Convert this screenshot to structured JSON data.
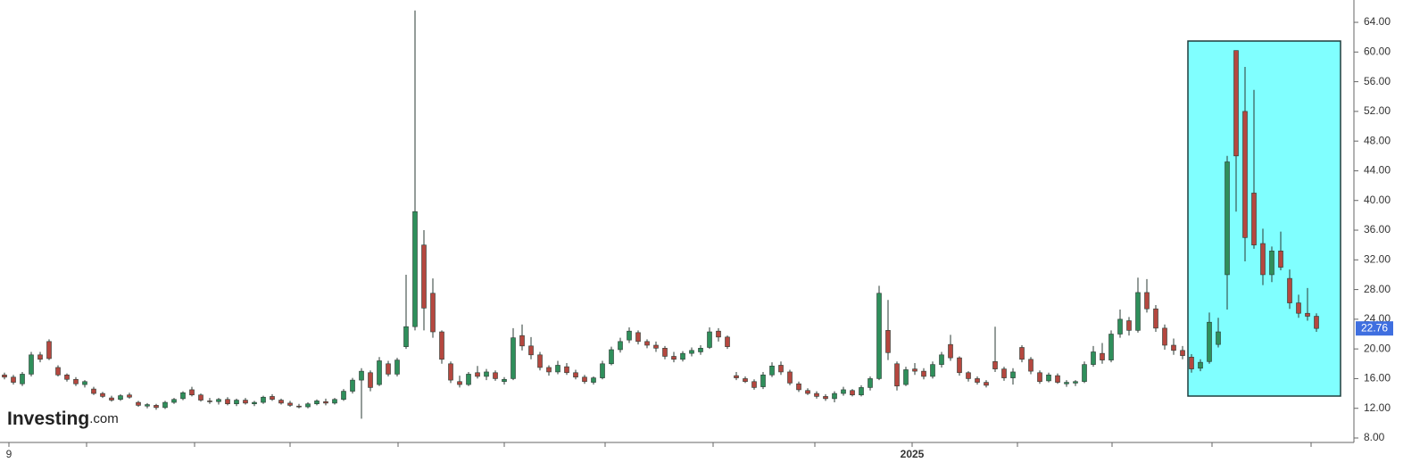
{
  "chart_data": {
    "type": "candlestick",
    "up_color": "#2f8f5b",
    "down_color": "#b5473f",
    "ylim": [
      8,
      64.5
    ],
    "yticks": [
      {
        "value": 8,
        "label": "8.00"
      },
      {
        "value": 12,
        "label": "12.00"
      },
      {
        "value": 16,
        "label": "16.00"
      },
      {
        "value": 20,
        "label": "20.00"
      },
      {
        "value": 24,
        "label": "24.00"
      },
      {
        "value": 28,
        "label": "28.00"
      },
      {
        "value": 32,
        "label": "32.00"
      },
      {
        "value": 36,
        "label": "36.00"
      },
      {
        "value": 40,
        "label": "40.00"
      },
      {
        "value": 44,
        "label": "44.00"
      },
      {
        "value": 48,
        "label": "48.00"
      },
      {
        "value": 52,
        "label": "52.00"
      },
      {
        "value": 56,
        "label": "56.00"
      },
      {
        "value": 60,
        "label": "60.00"
      },
      {
        "value": 64,
        "label": "64.00"
      }
    ],
    "xticks": [
      {
        "value": 0.5,
        "label": "9"
      },
      {
        "value": 9.2,
        "label": null
      },
      {
        "value": 21.3,
        "label": null
      },
      {
        "value": 32,
        "label": null
      },
      {
        "value": 44.1,
        "label": null
      },
      {
        "value": 56,
        "label": null
      },
      {
        "value": 67.3,
        "label": null
      },
      {
        "value": 79.4,
        "label": null
      },
      {
        "value": 90.8,
        "label": null
      },
      {
        "value": 101.7,
        "label": "2025"
      },
      {
        "value": 113.5,
        "label": null
      },
      {
        "value": 124.1,
        "label": null
      },
      {
        "value": 135.3,
        "label": null
      },
      {
        "value": 146.4,
        "label": null
      }
    ],
    "last_price": 22.76,
    "brand": "Investing",
    "brand_suffix": ".com",
    "candles": [
      [
        16.5,
        16.8,
        15.9,
        16.2
      ],
      [
        16.2,
        16.5,
        15.2,
        15.5
      ],
      [
        15.3,
        16.9,
        15.0,
        16.6
      ],
      [
        16.6,
        19.6,
        16.3,
        19.2
      ],
      [
        19.2,
        19.6,
        18.2,
        18.6
      ],
      [
        21.0,
        21.3,
        18.5,
        18.7
      ],
      [
        17.5,
        17.8,
        16.3,
        16.5
      ],
      [
        16.5,
        16.7,
        15.6,
        15.9
      ],
      [
        15.9,
        16.2,
        15.0,
        15.3
      ],
      [
        15.2,
        15.8,
        14.8,
        15.6
      ],
      [
        14.6,
        14.9,
        13.8,
        14.0
      ],
      [
        14.0,
        14.2,
        13.4,
        13.6
      ],
      [
        13.4,
        13.7,
        12.9,
        13.1
      ],
      [
        13.2,
        13.9,
        13.0,
        13.7
      ],
      [
        13.8,
        14.1,
        13.3,
        13.5
      ],
      [
        12.8,
        13.0,
        12.2,
        12.4
      ],
      [
        12.3,
        12.7,
        12.0,
        12.5
      ],
      [
        12.4,
        12.6,
        11.8,
        12.1
      ],
      [
        12.1,
        13.0,
        11.9,
        12.8
      ],
      [
        12.8,
        13.4,
        12.6,
        13.2
      ],
      [
        13.3,
        14.3,
        13.1,
        14.1
      ],
      [
        14.5,
        14.9,
        13.6,
        13.8
      ],
      [
        13.8,
        14.0,
        12.9,
        13.1
      ],
      [
        13.0,
        13.4,
        12.6,
        12.9
      ],
      [
        12.9,
        13.4,
        12.5,
        13.2
      ],
      [
        13.2,
        13.5,
        12.4,
        12.6
      ],
      [
        12.6,
        13.3,
        12.3,
        13.1
      ],
      [
        13.1,
        13.4,
        12.5,
        12.7
      ],
      [
        12.6,
        13.0,
        12.3,
        12.8
      ],
      [
        12.8,
        13.7,
        12.6,
        13.5
      ],
      [
        13.6,
        13.9,
        13.0,
        13.2
      ],
      [
        13.1,
        13.3,
        12.5,
        12.7
      ],
      [
        12.7,
        13.0,
        12.2,
        12.4
      ],
      [
        12.3,
        12.6,
        12.0,
        12.2
      ],
      [
        12.2,
        12.8,
        12.0,
        12.6
      ],
      [
        12.6,
        13.2,
        12.4,
        13.0
      ],
      [
        12.9,
        13.3,
        12.4,
        12.7
      ],
      [
        12.7,
        13.4,
        12.5,
        13.2
      ],
      [
        13.2,
        14.6,
        13.0,
        14.3
      ],
      [
        14.3,
        16.1,
        14.0,
        15.8
      ],
      [
        15.8,
        17.4,
        10.6,
        17.0
      ],
      [
        16.8,
        17.1,
        14.3,
        14.8
      ],
      [
        15.2,
        18.9,
        15.0,
        18.4
      ],
      [
        18.0,
        18.4,
        16.3,
        16.6
      ],
      [
        16.6,
        18.8,
        16.3,
        18.5
      ],
      [
        20.3,
        30.0,
        20.0,
        23.0
      ],
      [
        23.0,
        65.6,
        22.5,
        38.5
      ],
      [
        34.0,
        36.0,
        22.5,
        25.5
      ],
      [
        27.5,
        29.5,
        21.5,
        22.3
      ],
      [
        22.3,
        22.5,
        18.0,
        18.6
      ],
      [
        18.0,
        18.3,
        15.4,
        15.8
      ],
      [
        15.6,
        16.4,
        14.8,
        15.2
      ],
      [
        15.2,
        16.9,
        15.0,
        16.6
      ],
      [
        16.8,
        17.7,
        16.0,
        16.3
      ],
      [
        16.3,
        17.3,
        15.8,
        16.9
      ],
      [
        16.8,
        17.1,
        15.7,
        16.0
      ],
      [
        15.6,
        16.2,
        15.2,
        15.9
      ],
      [
        16.0,
        22.8,
        15.8,
        21.5
      ],
      [
        21.8,
        23.3,
        19.8,
        20.4
      ],
      [
        20.4,
        21.6,
        18.6,
        19.2
      ],
      [
        19.2,
        19.6,
        17.1,
        17.5
      ],
      [
        17.5,
        17.8,
        16.4,
        16.9
      ],
      [
        16.9,
        18.4,
        16.6,
        17.8
      ],
      [
        17.6,
        18.1,
        16.5,
        16.8
      ],
      [
        16.8,
        17.2,
        15.9,
        16.2
      ],
      [
        16.2,
        16.5,
        15.3,
        15.6
      ],
      [
        15.5,
        16.3,
        15.2,
        16.1
      ],
      [
        16.1,
        18.4,
        15.9,
        18.0
      ],
      [
        18.0,
        20.3,
        17.8,
        19.9
      ],
      [
        19.9,
        21.5,
        19.5,
        21.0
      ],
      [
        21.2,
        22.9,
        20.8,
        22.4
      ],
      [
        22.2,
        22.5,
        20.6,
        21.0
      ],
      [
        21.0,
        21.3,
        20.1,
        20.5
      ],
      [
        20.5,
        21.0,
        19.6,
        20.1
      ],
      [
        20.1,
        20.4,
        18.6,
        19.0
      ],
      [
        19.0,
        19.6,
        18.2,
        18.6
      ],
      [
        18.6,
        19.7,
        18.3,
        19.4
      ],
      [
        19.4,
        20.2,
        19.0,
        19.8
      ],
      [
        19.6,
        20.5,
        19.2,
        20.1
      ],
      [
        20.2,
        22.9,
        20.0,
        22.3
      ],
      [
        22.4,
        22.8,
        21.0,
        21.6
      ],
      [
        21.6,
        21.8,
        20.0,
        20.3
      ],
      [
        16.4,
        16.9,
        15.8,
        16.1
      ],
      [
        16.0,
        16.3,
        15.4,
        15.6
      ],
      [
        15.6,
        15.9,
        14.5,
        14.8
      ],
      [
        14.9,
        16.9,
        14.6,
        16.5
      ],
      [
        16.5,
        18.2,
        16.2,
        17.7
      ],
      [
        17.8,
        18.3,
        16.5,
        16.9
      ],
      [
        16.9,
        17.2,
        15.1,
        15.4
      ],
      [
        15.3,
        15.6,
        14.2,
        14.5
      ],
      [
        14.4,
        14.7,
        13.8,
        14.0
      ],
      [
        14.0,
        14.3,
        13.3,
        13.6
      ],
      [
        13.6,
        13.9,
        13.0,
        13.3
      ],
      [
        13.3,
        14.3,
        12.8,
        14.0
      ],
      [
        14.0,
        14.9,
        13.7,
        14.5
      ],
      [
        14.4,
        14.6,
        13.6,
        13.8
      ],
      [
        13.8,
        15.1,
        13.6,
        14.8
      ],
      [
        14.8,
        16.3,
        14.4,
        16.0
      ],
      [
        16.0,
        28.5,
        15.8,
        27.5
      ],
      [
        22.5,
        26.6,
        18.5,
        19.5
      ],
      [
        18.0,
        18.3,
        14.4,
        15.0
      ],
      [
        15.2,
        17.6,
        15.0,
        17.2
      ],
      [
        17.3,
        18.1,
        16.5,
        17.0
      ],
      [
        17.0,
        17.4,
        15.9,
        16.3
      ],
      [
        16.3,
        18.3,
        16.0,
        17.9
      ],
      [
        17.9,
        19.6,
        17.5,
        19.2
      ],
      [
        20.6,
        21.9,
        18.4,
        18.8
      ],
      [
        18.8,
        19.0,
        16.4,
        16.8
      ],
      [
        16.8,
        17.0,
        15.6,
        16.0
      ],
      [
        16.0,
        16.3,
        15.2,
        15.5
      ],
      [
        15.5,
        15.8,
        14.8,
        15.1
      ],
      [
        18.3,
        23.0,
        16.9,
        17.3
      ],
      [
        17.3,
        17.6,
        15.7,
        16.1
      ],
      [
        16.1,
        17.4,
        15.2,
        16.9
      ],
      [
        20.2,
        20.5,
        18.2,
        18.6
      ],
      [
        18.6,
        18.9,
        16.6,
        17.0
      ],
      [
        16.8,
        17.1,
        15.3,
        15.6
      ],
      [
        15.7,
        16.8,
        15.5,
        16.5
      ],
      [
        16.4,
        16.7,
        15.3,
        15.5
      ],
      [
        15.3,
        15.8,
        14.9,
        15.5
      ],
      [
        15.4,
        15.8,
        15.0,
        15.6
      ],
      [
        15.6,
        18.3,
        15.4,
        17.9
      ],
      [
        17.9,
        20.4,
        17.6,
        19.6
      ],
      [
        19.4,
        20.8,
        18.0,
        18.5
      ],
      [
        18.5,
        22.5,
        18.2,
        22.0
      ],
      [
        22.0,
        25.3,
        21.5,
        24.0
      ],
      [
        23.8,
        24.3,
        21.8,
        22.5
      ],
      [
        22.5,
        29.6,
        22.2,
        27.6
      ],
      [
        27.6,
        29.4,
        24.9,
        25.4
      ],
      [
        25.4,
        25.9,
        22.3,
        22.8
      ],
      [
        22.8,
        23.3,
        19.9,
        20.5
      ],
      [
        20.5,
        21.4,
        19.2,
        19.8
      ],
      [
        19.8,
        20.4,
        18.6,
        19.1
      ],
      [
        18.9,
        19.3,
        16.8,
        17.3
      ],
      [
        17.4,
        18.6,
        17.0,
        18.2
      ],
      [
        18.3,
        24.9,
        18.0,
        23.6
      ],
      [
        20.6,
        24.2,
        20.2,
        22.3
      ],
      [
        30.0,
        46.0,
        25.3,
        45.2
      ],
      [
        60.2,
        60.2,
        38.5,
        46.0
      ],
      [
        52.0,
        58.0,
        31.8,
        35.0
      ],
      [
        41.0,
        54.9,
        33.5,
        34.0
      ],
      [
        34.2,
        36.2,
        28.6,
        30.0
      ],
      [
        30.0,
        33.8,
        29.0,
        33.2
      ],
      [
        33.2,
        35.8,
        30.6,
        31.0
      ],
      [
        29.5,
        30.7,
        25.4,
        26.2
      ],
      [
        26.2,
        27.3,
        24.2,
        24.8
      ],
      [
        24.8,
        28.2,
        23.8,
        24.4
      ],
      [
        24.4,
        24.8,
        22.3,
        22.76
      ]
    ]
  }
}
